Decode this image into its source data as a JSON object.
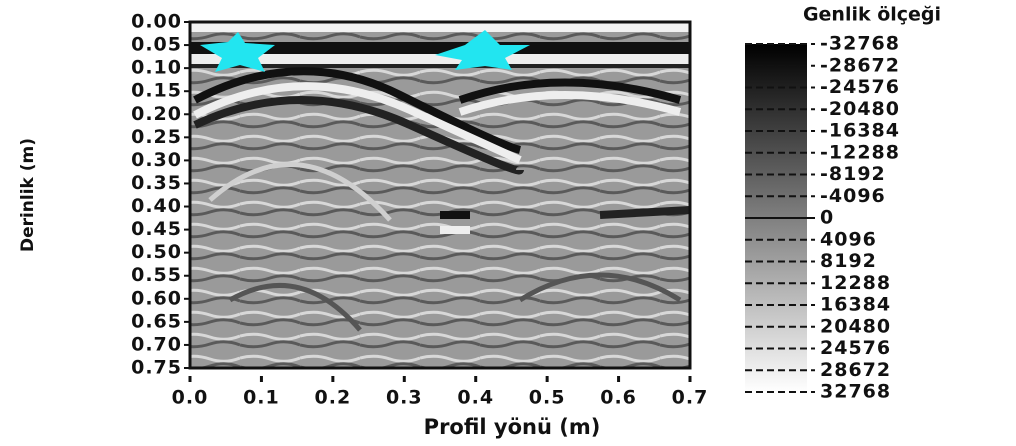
{
  "chart_data": {
    "type": "heatmap",
    "ylabel": "Derinlik (m)",
    "xlabel": "Profil yönü (m)",
    "xlim": [
      0,
      0.7
    ],
    "xticks": [
      {
        "value": 0,
        "label": "0.0"
      },
      0.1,
      0.2,
      0.3,
      0.4,
      0.5,
      0.6,
      0.7
    ],
    "ylim": [
      0,
      0.75
    ],
    "y_inverted": true,
    "yticks": [
      {
        "value": 0,
        "label": "0.00"
      },
      0.05,
      {
        "value": 0.1,
        "label": "0.10"
      },
      0.15,
      {
        "value": 0.2,
        "label": "0.20"
      },
      0.25,
      {
        "value": 0.3,
        "label": "0.30"
      },
      0.35,
      {
        "value": 0.4,
        "label": "0.40"
      },
      0.45,
      {
        "value": 0.5,
        "label": "0.50"
      },
      0.55,
      {
        "value": 0.6,
        "label": "0.60"
      },
      0.65,
      {
        "value": 0.7,
        "label": "0.70"
      },
      0.75
    ],
    "colorbar": {
      "title": "Genlik ölçeği",
      "clim": [
        -32768,
        32768
      ],
      "colors": [
        "#000000",
        "#ffffff"
      ],
      "ticks": [
        -32768,
        -28672,
        -24576,
        -20480,
        -16384,
        -12288,
        -8192,
        -4096,
        0,
        4096,
        8192,
        12288,
        16384,
        20480,
        24576,
        28672,
        32768
      ]
    }
  }
}
